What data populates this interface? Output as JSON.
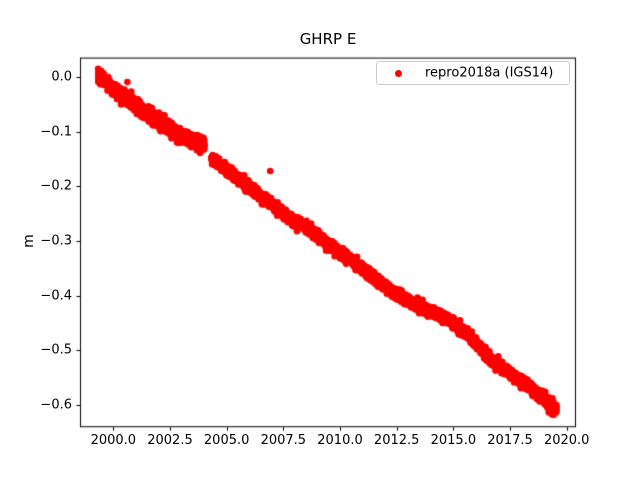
{
  "figure": {
    "background": "#ffffff"
  },
  "chart_data": {
    "type": "scatter",
    "title": "GHRP E",
    "xlabel": "",
    "ylabel": "m",
    "grid": false,
    "axis_color": "#000000",
    "x_axis": {
      "min": 1998.53,
      "max": 2020.41,
      "ticks": [
        2000.0,
        2002.5,
        2005.0,
        2007.5,
        2010.0,
        2012.5,
        2015.0,
        2017.5,
        2020.0
      ],
      "tick_labels": [
        "2000.0",
        "2002.5",
        "2005.0",
        "2007.5",
        "2010.0",
        "2012.5",
        "2015.0",
        "2017.5",
        "2020.0"
      ]
    },
    "y_axis": {
      "min": -0.6406,
      "max": 0.0355,
      "ticks": [
        0.0,
        -0.1,
        -0.2,
        -0.3,
        -0.4,
        -0.5,
        -0.6
      ],
      "tick_labels": [
        "0.0",
        "−0.1",
        "−0.2",
        "−0.3",
        "−0.4",
        "−0.5",
        "−0.6"
      ]
    },
    "legend": {
      "position": "upper right",
      "entries": [
        {
          "label": "repro2018a (IGS14)",
          "marker": "dot",
          "color": "#ff0000"
        }
      ]
    },
    "series": [
      {
        "name": "repro2018a (IGS14)",
        "color": "#ff0000",
        "marker": "dot",
        "marker_diameter_px": 6.6,
        "seed": 7,
        "points_per_year": 350,
        "trend_description": "near-linear subsidence ~ -0.030 m/yr from ~0.0 m in 1999.3 to ~ -0.61 m in 2019.5, small offset step near 2004.2",
        "segments": [
          {
            "x_start": 1999.33,
            "x_end": 1999.58,
            "sigma": 0.006
          },
          {
            "x_start": 1999.74,
            "x_end": 2004.02,
            "sigma": 0.0055
          },
          {
            "x_start": 2004.33,
            "x_end": 2019.0,
            "sigma": 0.0042
          },
          {
            "x_start": 2019.0,
            "x_end": 2019.55,
            "sigma": 0.0055
          }
        ],
        "trend_anchors": [
          [
            1999.33,
            0.001
          ],
          [
            1999.45,
            -0.001
          ],
          [
            1999.58,
            -0.005
          ],
          [
            1999.74,
            -0.013
          ],
          [
            2000.2,
            -0.028
          ],
          [
            2000.8,
            -0.046
          ],
          [
            2001.5,
            -0.068
          ],
          [
            2002.3,
            -0.09
          ],
          [
            2003.0,
            -0.108
          ],
          [
            2003.6,
            -0.117
          ],
          [
            2004.02,
            -0.125
          ],
          [
            2004.33,
            -0.15
          ],
          [
            2005.2,
            -0.176
          ],
          [
            2006.2,
            -0.208
          ],
          [
            2007.2,
            -0.24
          ],
          [
            2007.8,
            -0.259
          ],
          [
            2008.6,
            -0.276
          ],
          [
            2009.6,
            -0.31
          ],
          [
            2010.6,
            -0.338
          ],
          [
            2011.6,
            -0.37
          ],
          [
            2012.5,
            -0.398
          ],
          [
            2013.5,
            -0.42
          ],
          [
            2014.9,
            -0.445
          ],
          [
            2015.8,
            -0.478
          ],
          [
            2016.6,
            -0.515
          ],
          [
            2017.5,
            -0.543
          ],
          [
            2018.3,
            -0.565
          ],
          [
            2019.0,
            -0.588
          ],
          [
            2019.3,
            -0.6
          ],
          [
            2019.55,
            -0.609
          ]
        ],
        "outliers": [
          [
            2000.62,
            -0.009
          ],
          [
            2006.92,
            -0.172
          ],
          [
            2008.1,
            -0.282
          ],
          [
            2019.33,
            -0.613
          ]
        ]
      }
    ]
  }
}
